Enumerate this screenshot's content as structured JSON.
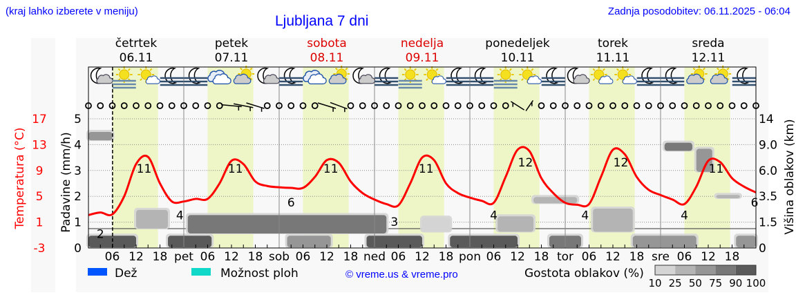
{
  "header": {
    "hint": "(kraj lahko izberete v meniju)",
    "title": "Ljubljana 7 dni",
    "updated": "Zadnja posodobitev: 06.11.2025 - 06:04"
  },
  "days": [
    {
      "name": "četrtek",
      "date": "06.11",
      "weekend": false
    },
    {
      "name": "petek",
      "date": "07.11",
      "weekend": false
    },
    {
      "name": "sobota",
      "date": "08.11",
      "weekend": true
    },
    {
      "name": "nedelja",
      "date": "09.11",
      "weekend": true
    },
    {
      "name": "ponedeljek",
      "date": "10.11",
      "weekend": false
    },
    {
      "name": "torek",
      "date": "11.11",
      "weekend": false
    },
    {
      "name": "sreda",
      "date": "12.11",
      "weekend": false
    }
  ],
  "legend": {
    "rain": "Dež",
    "showers": "Možnost ploh",
    "copyright": "© vreme.us & vreme.pro",
    "cloud_density": "Gostota oblakov (%)",
    "density_levels": [
      "10",
      "25",
      "50",
      "75",
      "90",
      "100"
    ]
  },
  "colors": {
    "temperature": "#ff0000",
    "rain": "#0055ff",
    "showers": "#10d8c8",
    "daylight": "#eef6c8",
    "weekend": "#dd0000",
    "header": "#0000ff",
    "density": [
      "#d4d4d4",
      "#b4b4b4",
      "#969696",
      "#787878",
      "#5a5a5a"
    ]
  },
  "chart_data": {
    "type": "line",
    "title": "Ljubljana 7 dni",
    "now": "06.11 06:04",
    "x_range": [
      "06.11 00:00",
      "13.11 00:00"
    ],
    "x_tick_labels": [
      "06",
      "12",
      "18",
      "pet",
      "06",
      "12",
      "18",
      "sob",
      "06",
      "12",
      "18",
      "ned",
      "06",
      "12",
      "18",
      "pon",
      "06",
      "12",
      "18",
      "tor",
      "06",
      "12",
      "18",
      "sre",
      "06",
      "12",
      "18"
    ],
    "left_axis": {
      "label": "Padavine (mm/h)",
      "range": [
        0,
        5
      ],
      "ticks": [
        "0",
        "1",
        "2",
        "3",
        "4",
        "5"
      ]
    },
    "temperature_axis": {
      "label": "Temperatura (°C)",
      "range": [
        -3,
        17
      ],
      "ticks": [
        "-3",
        "1",
        "5",
        "9",
        "13",
        "17"
      ]
    },
    "right_axis": {
      "label": "Višina oblakov (km)",
      "ticks": [
        "0",
        "1.5",
        "3.5",
        "6.0",
        "9.0",
        "14"
      ],
      "tick_values": [
        0,
        1.5,
        3.5,
        6,
        9,
        14
      ]
    },
    "grid": true,
    "daylight": [
      [
        "06.11 06:00",
        "06.11 17:30"
      ],
      [
        "07.11 06:00",
        "07.11 17:30"
      ],
      [
        "08.11 06:00",
        "08.11 17:30"
      ],
      [
        "09.11 06:00",
        "09.11 17:30"
      ],
      [
        "10.11 06:00",
        "10.11 17:30"
      ],
      [
        "11.11 06:00",
        "11.11 17:30"
      ],
      [
        "12.11 06:00",
        "12.11 17:30"
      ]
    ],
    "precipitation_mm_h": 0,
    "temperature": [
      [
        "06.11 00:00",
        2.1
      ],
      [
        "06.11 03:00",
        2.5
      ],
      [
        "06.11 06:00",
        2.2
      ],
      [
        "06.11 09:00",
        5.0
      ],
      [
        "06.11 12:00",
        10.0
      ],
      [
        "06.11 15:00",
        11.1
      ],
      [
        "06.11 18:00",
        7.0
      ],
      [
        "06.11 21:00",
        4.2
      ],
      [
        "07.11 00:00",
        4.2
      ],
      [
        "07.11 03:00",
        4.6
      ],
      [
        "07.11 06:00",
        4.6
      ],
      [
        "07.11 09:00",
        7.0
      ],
      [
        "07.11 12:00",
        10.5
      ],
      [
        "07.11 15:00",
        10.0
      ],
      [
        "07.11 18:00",
        7.3
      ],
      [
        "07.11 21:00",
        6.6
      ],
      [
        "08.11 00:00",
        6.4
      ],
      [
        "08.11 03:00",
        6.3
      ],
      [
        "08.11 06:00",
        6.3
      ],
      [
        "08.11 09:00",
        8.0
      ],
      [
        "08.11 12:00",
        10.6
      ],
      [
        "08.11 15:00",
        10.2
      ],
      [
        "08.11 18:00",
        7.3
      ],
      [
        "08.11 21:00",
        5.5
      ],
      [
        "09.11 00:00",
        4.5
      ],
      [
        "09.11 03:00",
        3.8
      ],
      [
        "09.11 06:00",
        3.6
      ],
      [
        "09.11 09:00",
        7.0
      ],
      [
        "09.11 12:00",
        11.0
      ],
      [
        "09.11 15:00",
        10.6
      ],
      [
        "09.11 18:00",
        7.0
      ],
      [
        "09.11 21:00",
        5.5
      ],
      [
        "10.11 00:00",
        4.8
      ],
      [
        "10.11 03:00",
        4.3
      ],
      [
        "10.11 06:00",
        4.0
      ],
      [
        "10.11 09:00",
        8.0
      ],
      [
        "10.11 12:00",
        12.2
      ],
      [
        "10.11 15:00",
        12.0
      ],
      [
        "10.11 18:00",
        7.8
      ],
      [
        "10.11 21:00",
        5.5
      ],
      [
        "11.11 00:00",
        4.0
      ],
      [
        "11.11 03:00",
        3.7
      ],
      [
        "11.11 06:00",
        3.8
      ],
      [
        "11.11 09:00",
        8.0
      ],
      [
        "11.11 12:00",
        12.2
      ],
      [
        "11.11 15:00",
        11.5
      ],
      [
        "11.11 18:00",
        8.0
      ],
      [
        "11.11 21:00",
        6.0
      ],
      [
        "12.11 00:00",
        5.2
      ],
      [
        "12.11 03:00",
        4.5
      ],
      [
        "12.11 06:00",
        3.8
      ],
      [
        "12.11 09:00",
        6.5
      ],
      [
        "12.11 12:00",
        10.5
      ],
      [
        "12.11 15:00",
        10.3
      ],
      [
        "12.11 18:00",
        7.8
      ],
      [
        "12.11 21:00",
        6.5
      ],
      [
        "13.11 00:00",
        5.6
      ]
    ],
    "min_max_labels": [
      [
        "06.11 03:00",
        "2"
      ],
      [
        "06.11 14:00",
        "11"
      ],
      [
        "06.11 23:00",
        "4"
      ],
      [
        "07.11 13:00",
        "11"
      ],
      [
        "08.11 03:00",
        "6"
      ],
      [
        "08.11 13:00",
        "11"
      ],
      [
        "09.11 05:00",
        "3"
      ],
      [
        "09.11 13:00",
        "11"
      ],
      [
        "10.11 06:00",
        "4"
      ],
      [
        "10.11 14:00",
        "12"
      ],
      [
        "11.11 05:00",
        "4"
      ],
      [
        "11.11 14:00",
        "12"
      ],
      [
        "12.11 06:00",
        "4"
      ],
      [
        "12.11 14:00",
        "11"
      ],
      [
        "13.11 00:00",
        "6"
      ]
    ],
    "symbols": [
      [
        "06.11 03:00",
        "moon-cloud"
      ],
      [
        "06.11 09:00",
        "fog-sun"
      ],
      [
        "06.11 15:00",
        "sun-cloud"
      ],
      [
        "06.11 21:00",
        "fog-moon"
      ],
      [
        "07.11 03:00",
        "fog-moon"
      ],
      [
        "07.11 09:00",
        "cloudy"
      ],
      [
        "07.11 15:00",
        "cloud-sun"
      ],
      [
        "07.11 21:00",
        "moon-cloud"
      ],
      [
        "08.11 03:00",
        "fog-moon"
      ],
      [
        "08.11 09:00",
        "cloudy"
      ],
      [
        "08.11 15:00",
        "cloud-sun"
      ],
      [
        "08.11 21:00",
        "moon-cloud"
      ],
      [
        "09.11 03:00",
        "fog-moon"
      ],
      [
        "09.11 09:00",
        "fog-sun"
      ],
      [
        "09.11 15:00",
        "sun-cloud"
      ],
      [
        "09.11 21:00",
        "fog-moon"
      ],
      [
        "10.11 03:00",
        "fog-moon"
      ],
      [
        "10.11 09:00",
        "fog-sun"
      ],
      [
        "10.11 15:00",
        "sun-cloud"
      ],
      [
        "10.11 21:00",
        "fog-moon"
      ],
      [
        "11.11 03:00",
        "moon-cloud"
      ],
      [
        "11.11 09:00",
        "sun-cloud"
      ],
      [
        "11.11 15:00",
        "sun-cloud"
      ],
      [
        "11.11 21:00",
        "fog-moon"
      ],
      [
        "12.11 03:00",
        "fog-moon"
      ],
      [
        "12.11 09:00",
        "cloud-sun"
      ],
      [
        "12.11 15:00",
        "cloud-sun"
      ],
      [
        "12.11 21:00",
        "fog-moon"
      ]
    ],
    "wind_barbs": [
      [
        "07.11 12:00",
        80
      ],
      [
        "07.11 15:00",
        70
      ],
      [
        "07.11 18:00",
        60
      ],
      [
        "08.11 12:00",
        60
      ],
      [
        "08.11 15:00",
        55
      ],
      [
        "10.11 12:00",
        220
      ],
      [
        "10.11 15:00",
        160
      ]
    ],
    "wind_calm_symbol": "circle",
    "cloud_patches": [
      {
        "from": "06.11 00:00",
        "to": "06.11 12:00",
        "km": [
          0,
          0.75
        ],
        "density": 90
      },
      {
        "from": "06.11 20:00",
        "to": "07.11 07:00",
        "km": [
          0,
          0.75
        ],
        "density": 90
      },
      {
        "from": "08.11 02:00",
        "to": "08.11 13:00",
        "km": [
          0,
          0.75
        ],
        "density": 50
      },
      {
        "from": "08.11 22:00",
        "to": "09.11 12:00",
        "km": [
          0,
          0.75
        ],
        "density": 90
      },
      {
        "from": "09.11 19:00",
        "to": "10.11 12:00",
        "km": [
          0,
          0.75
        ],
        "density": 90
      },
      {
        "from": "10.11 20:00",
        "to": "11.11 04:00",
        "km": [
          0,
          0.75
        ],
        "density": 75
      },
      {
        "from": "11.11 17:00",
        "to": "12.11 09:00",
        "km": [
          0,
          0.75
        ],
        "density": 50
      },
      {
        "from": "12.11 19:00",
        "to": "13.11 00:00",
        "km": [
          0,
          0.75
        ],
        "density": 50
      },
      {
        "from": "07.11 01:00",
        "to": "09.11 03:00",
        "km": [
          0.8,
          2.1
        ],
        "density": 75
      },
      {
        "from": "06.11 12:00",
        "to": "06.11 20:00",
        "km": [
          1.1,
          2.5
        ],
        "density": 25
      },
      {
        "from": "06.11 00:00",
        "to": "06.11 06:00",
        "km": [
          9.7,
          11.6
        ],
        "density": 50
      },
      {
        "from": "12.11 01:00",
        "to": "12.11 08:00",
        "km": [
          8.2,
          9.5
        ],
        "density": 75
      },
      {
        "from": "12.11 09:00",
        "to": "12.11 13:00",
        "km": [
          5.8,
          8.6
        ],
        "density": 50
      },
      {
        "from": "10.11 16:00",
        "to": "11.11 03:00",
        "km": [
          2.9,
          3.5
        ],
        "density": 25
      },
      {
        "from": "12.11 14:00",
        "to": "12.11 20:00",
        "km": [
          3.3,
          3.7
        ],
        "density": 25
      },
      {
        "from": "09.11 12:00",
        "to": "09.11 19:00",
        "km": [
          0.9,
          1.9
        ],
        "density": 10
      },
      {
        "from": "10.11 07:00",
        "to": "10.11 16:00",
        "km": [
          0.9,
          2.0
        ],
        "density": 25
      },
      {
        "from": "11.11 07:00",
        "to": "11.11 17:00",
        "km": [
          0.9,
          2.6
        ],
        "density": 25
      }
    ]
  }
}
